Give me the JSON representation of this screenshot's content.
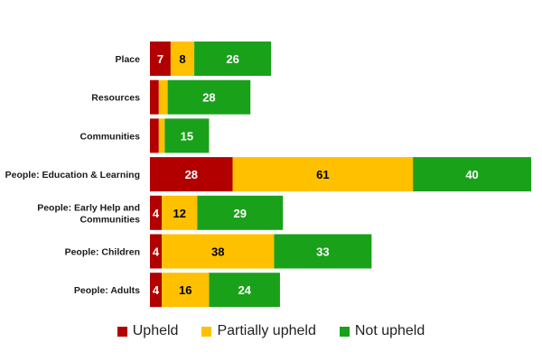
{
  "chart_data": {
    "type": "bar",
    "orientation": "horizontal",
    "stacked": true,
    "categories": [
      "Place",
      "Resources",
      "Communities",
      "People: Education & Learning",
      "People: Early Help and Communities",
      "People: Children",
      "People: Adults"
    ],
    "series": [
      {
        "name": "Upheld",
        "color": "#b20000",
        "label_color": "#ffffff",
        "values": [
          7,
          3,
          3,
          28,
          4,
          4,
          4
        ],
        "labels": [
          "7",
          "",
          "",
          "28",
          "4",
          "4",
          "4"
        ]
      },
      {
        "name": "Partially upheld",
        "color": "#ffc000",
        "label_color": "#000000",
        "values": [
          8,
          3,
          2,
          61,
          12,
          38,
          16
        ],
        "labels": [
          "8",
          "",
          "",
          "61",
          "12",
          "38",
          "16"
        ]
      },
      {
        "name": "Not upheld",
        "color": "#1aa11a",
        "label_color": "#ffffff",
        "values": [
          26,
          28,
          15,
          40,
          29,
          33,
          24
        ],
        "labels": [
          "26",
          "28",
          "15",
          "40",
          "29",
          "33",
          "24"
        ]
      }
    ],
    "xlim": [
      0,
      129
    ],
    "grid": false,
    "legend_position": "bottom"
  }
}
